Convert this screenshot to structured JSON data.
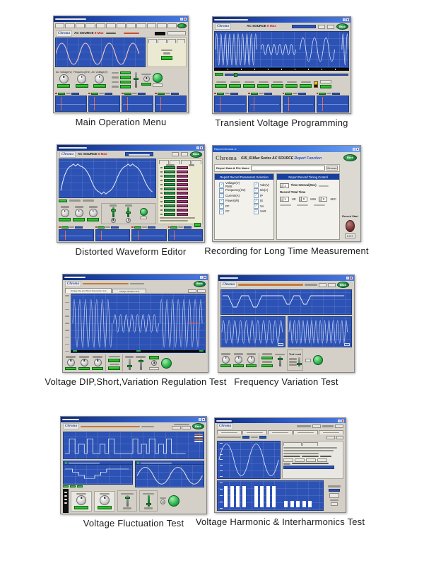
{
  "common": {
    "brand": "Chroma",
    "model": "AC SOURCE",
    "model_suffix": "6 Max",
    "back_label": "Back"
  },
  "figures": [
    {
      "caption": "Main Operation Menu",
      "knob_labels": [
        "AC Voltage(V)",
        "Frequency(Hz)",
        "AC Voltage(V)"
      ]
    },
    {
      "caption": "Transient Voltage Programming"
    },
    {
      "caption": "Distorted Waveform Editor"
    },
    {
      "caption": "Recording for Long Time Measurement",
      "dialog": {
        "window_title": "Report Chroma vi",
        "series_title": "615_61Max Series AC SOURCE",
        "function_title": "Report Function",
        "file_label": "Report Data & File Name",
        "browse_label": "Browse",
        "params_group_title": "Report Record Parameters Selection",
        "timing_group_title": "Report Record Timing Control",
        "checkboxes_col1": [
          "Voltage(V) RMS",
          "Frequency(Hz)",
          "Current(A)",
          "Power(W)",
          "PF",
          "CF"
        ],
        "checkboxes_col2": [
          "Vdc(V)",
          "Idc(A)",
          "IP",
          "IS",
          "VA",
          "VAR"
        ],
        "time_interval_value": "1",
        "time_interval_label": "Time Interval(Sec)",
        "record_total_label": "Record Total Time",
        "hr_value": "1",
        "hr_unit": "HR",
        "min_value": "0",
        "min_unit": "MIN",
        "sec_value": "0",
        "sec_unit": "SEC",
        "record_start_label": "Record Start",
        "exit_label": "EXIT"
      }
    },
    {
      "caption": "Voltage DIP,Short,Variation Regulation Test",
      "tabs": [
        "Voltage Dip and Short Interruption test",
        "Voltage Variation test"
      ]
    },
    {
      "caption": "Frequency Variation Test",
      "test_level_label": "Test Level"
    },
    {
      "caption": "Voltage Fluctuation Test"
    },
    {
      "caption": "Voltage Harmonic & Interharmonics Test",
      "harmonic_bars": [
        86,
        86,
        86,
        86,
        0,
        86,
        86,
        86,
        86,
        0,
        26,
        26,
        26,
        26,
        26
      ]
    }
  ]
}
